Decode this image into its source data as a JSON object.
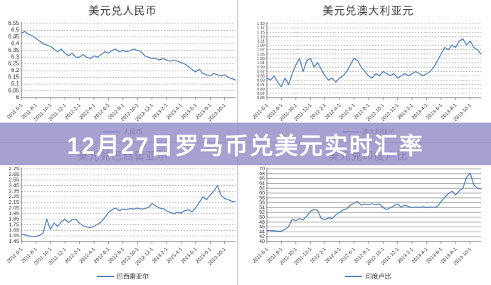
{
  "banner": {
    "text": "12月27日罗马币兑美元实时汇率",
    "bg": "rgba(152,145,201,0.85)",
    "text_color": "#ffffff"
  },
  "colors": {
    "line": "#4f81bd",
    "grid": "#a3a3a3",
    "grid_dark": "#8f8f8f",
    "axis": "#707070",
    "text": "#333333",
    "divider": "#d6d2e6"
  },
  "x_ticks": [
    "2011-6-1",
    "2011-8-1",
    "2011-10-1",
    "2011-12-1",
    "2012-2-1",
    "2012-4-1",
    "2012-6-1",
    "2012-8-1",
    "2012-10-1",
    "2012-12-1",
    "2013-2-1",
    "2013-4-1",
    "2013-6-1",
    "2013-8-1",
    "2013-10-1"
  ],
  "chart_data": [
    {
      "type": "line",
      "title": "美元兑人民币",
      "legend": "人民币",
      "ylim": [
        6,
        6.55
      ],
      "ystep": 0.05,
      "grid": "dashed",
      "legend_position": "bottom",
      "values": [
        6.48,
        6.49,
        6.47,
        6.46,
        6.44,
        6.42,
        6.4,
        6.39,
        6.38,
        6.36,
        6.34,
        6.36,
        6.33,
        6.31,
        6.33,
        6.3,
        6.3,
        6.32,
        6.3,
        6.29,
        6.31,
        6.3,
        6.32,
        6.34,
        6.33,
        6.35,
        6.36,
        6.34,
        6.35,
        6.34,
        6.35,
        6.36,
        6.35,
        6.34,
        6.31,
        6.3,
        6.29,
        6.29,
        6.28,
        6.29,
        6.28,
        6.27,
        6.28,
        6.27,
        6.26,
        6.25,
        6.23,
        6.21,
        6.19,
        6.21,
        6.18,
        6.17,
        6.16,
        6.18,
        6.17,
        6.16,
        6.17,
        6.15,
        6.14,
        6.13
      ]
    },
    {
      "type": "line",
      "title": "美元兑澳大利亚元",
      "legend": "澳大利亚元",
      "ylim": [
        0.85,
        1.19
      ],
      "ystep": 0.02,
      "grid": "dashed",
      "legend_position": "bottom",
      "values": [
        0.94,
        0.93,
        0.95,
        0.92,
        0.9,
        0.94,
        0.91,
        0.96,
        1.0,
        1.03,
        0.97,
        1.02,
        1.03,
        0.99,
        1.01,
        0.98,
        0.95,
        0.93,
        0.94,
        0.92,
        0.94,
        0.95,
        0.97,
        1.0,
        1.03,
        1.02,
        0.99,
        0.97,
        0.95,
        0.94,
        0.96,
        0.95,
        0.97,
        0.96,
        0.95,
        0.96,
        0.94,
        0.95,
        0.96,
        0.95,
        0.96,
        0.97,
        0.96,
        0.95,
        0.96,
        0.97,
        0.99,
        1.02,
        1.05,
        1.08,
        1.07,
        1.09,
        1.08,
        1.11,
        1.12,
        1.09,
        1.11,
        1.08,
        1.07,
        1.05
      ]
    },
    {
      "type": "line",
      "title": "美元兑巴西雷亚尔",
      "legend": "巴西雷亚尔",
      "ylim": [
        1.45,
        2.75
      ],
      "ystep": 0.1,
      "grid": "dashed",
      "legend_position": "bottom",
      "values": [
        1.58,
        1.57,
        1.55,
        1.54,
        1.54,
        1.56,
        1.6,
        1.85,
        1.67,
        1.78,
        1.72,
        1.8,
        1.85,
        1.79,
        1.84,
        1.85,
        1.78,
        1.73,
        1.71,
        1.7,
        1.72,
        1.76,
        1.8,
        1.88,
        1.97,
        2.02,
        2.05,
        2.0,
        2.03,
        2.02,
        2.04,
        2.03,
        2.05,
        2.03,
        2.04,
        2.06,
        2.13,
        2.09,
        2.05,
        2.04,
        2.0,
        1.97,
        1.95,
        1.97,
        1.96,
        2.0,
        2.02,
        1.98,
        2.05,
        2.15,
        2.25,
        2.2,
        2.28,
        2.35,
        2.45,
        2.28,
        2.22,
        2.2,
        2.17,
        2.16
      ]
    },
    {
      "type": "line",
      "title": "美元兑印度卢比",
      "legend": "印度卢比",
      "ylim": [
        40,
        70
      ],
      "ystep": 2,
      "grid": "solid",
      "legend_position": "bottom",
      "values": [
        44.6,
        44.5,
        44.4,
        44.3,
        44.3,
        45.0,
        46.2,
        49.3,
        48.6,
        49.5,
        49.0,
        50.5,
        52.5,
        53.3,
        52.8,
        49.5,
        49.0,
        49.8,
        49.5,
        51.0,
        52.0,
        53.0,
        53.5,
        55.0,
        55.8,
        56.5,
        55.0,
        55.5,
        55.2,
        55.6,
        55.3,
        55.5,
        54.0,
        53.2,
        54.0,
        54.8,
        55.5,
        54.3,
        55.0,
        54.5,
        54.0,
        54.3,
        54.1,
        54.4,
        54.0,
        54.3,
        54.1,
        54.5,
        56.5,
        58.3,
        59.8,
        60.8,
        59.2,
        60.9,
        62.0,
        66.5,
        68.3,
        63.5,
        62.0,
        61.8
      ]
    }
  ]
}
